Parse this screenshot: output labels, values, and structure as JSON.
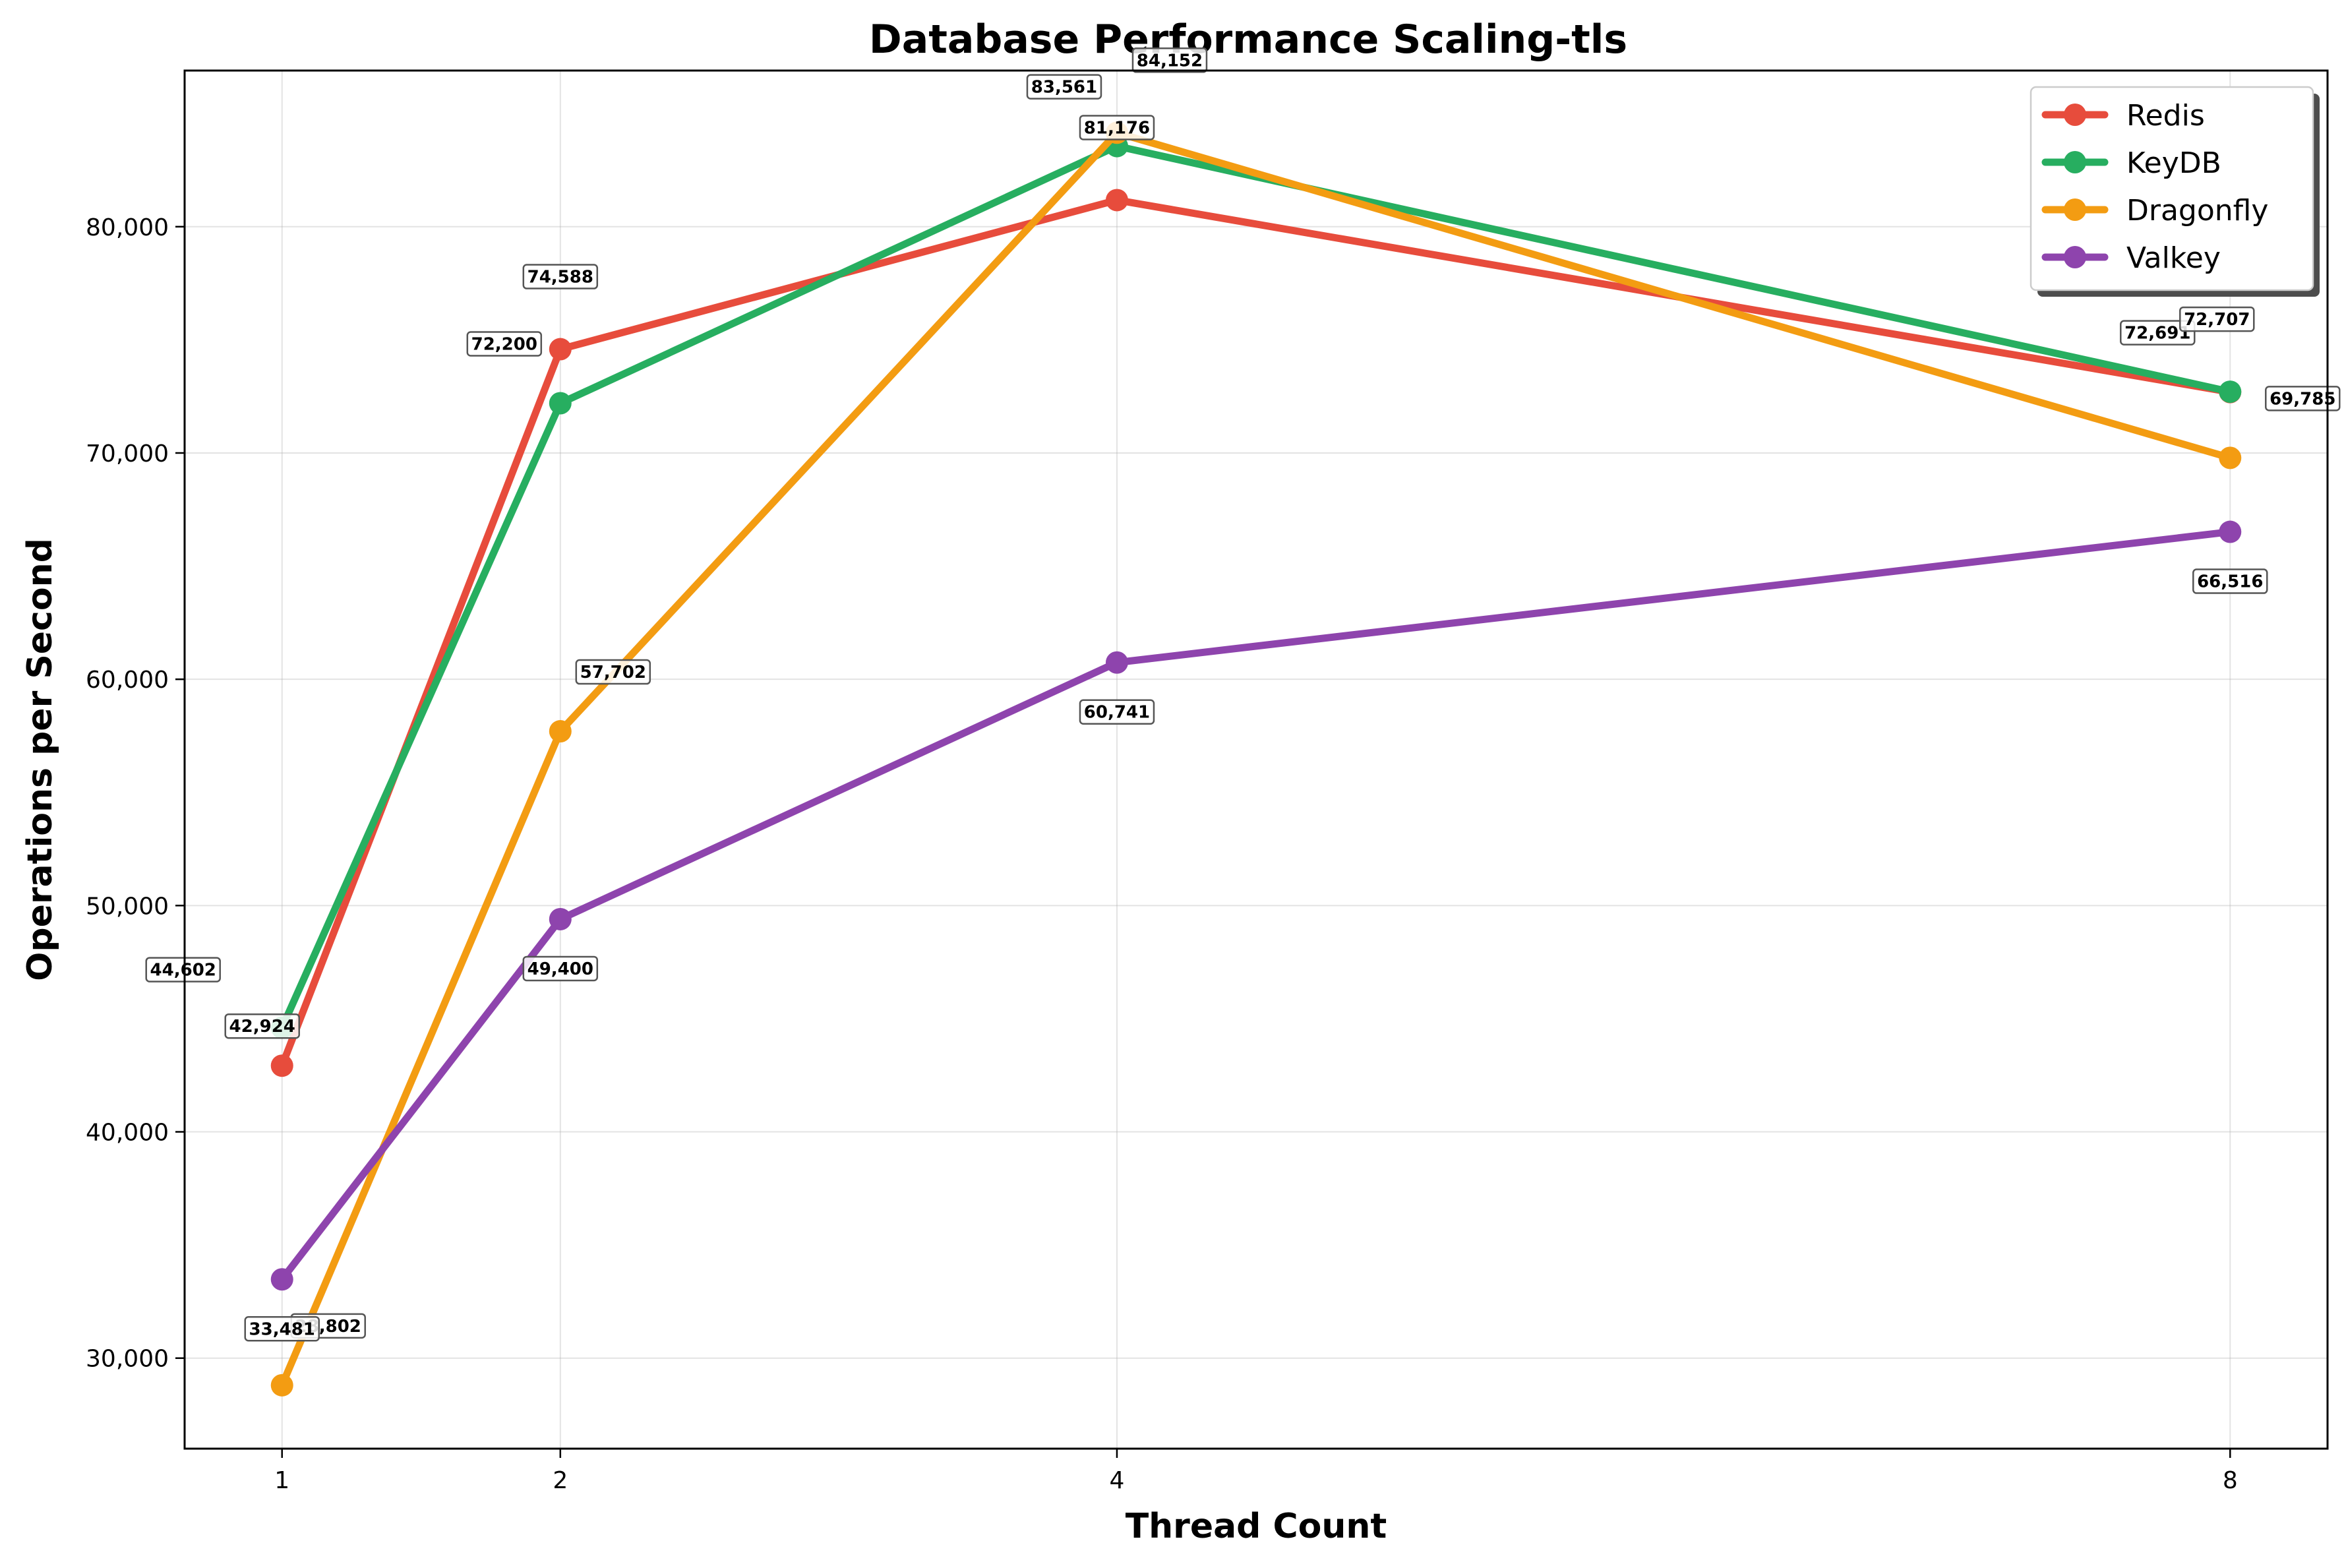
{
  "chart_data": {
    "type": "line",
    "title": "Database Performance Scaling-tls",
    "xlabel": "Thread Count",
    "ylabel": "Operations per Second",
    "x": [
      1,
      2,
      4,
      8
    ],
    "x_tick_labels": [
      "1",
      "2",
      "4",
      "8"
    ],
    "xlim": [
      0.65,
      8.35
    ],
    "ylim": [
      26000,
      86900
    ],
    "y_ticks": [
      30000,
      40000,
      50000,
      60000,
      70000,
      80000
    ],
    "y_tick_labels": [
      "30,000",
      "40,000",
      "50,000",
      "60,000",
      "70,000",
      "80,000"
    ],
    "grid": true,
    "legend_position": "top-right",
    "series": [
      {
        "name": "Redis",
        "color": "#e74c3c",
        "values": [
          42924,
          74588,
          81176,
          72691
        ],
        "labels": [
          "42,924",
          "74,588",
          "81,176",
          "72,691"
        ]
      },
      {
        "name": "KeyDB",
        "color": "#27ae60",
        "values": [
          44602,
          72200,
          83561,
          72707
        ],
        "labels": [
          "44,602",
          "72,200",
          "83,561",
          "72,707"
        ]
      },
      {
        "name": "Dragonfly",
        "color": "#f39c12",
        "values": [
          28802,
          57702,
          84152,
          69785
        ],
        "labels": [
          "28,802",
          "57,702",
          "84,152",
          "69,785"
        ]
      },
      {
        "name": "Valkey",
        "color": "#8e44ad",
        "values": [
          33481,
          49400,
          60741,
          66516
        ],
        "labels": [
          "33,481",
          "49,400",
          "60,741",
          "66,516"
        ]
      }
    ]
  }
}
